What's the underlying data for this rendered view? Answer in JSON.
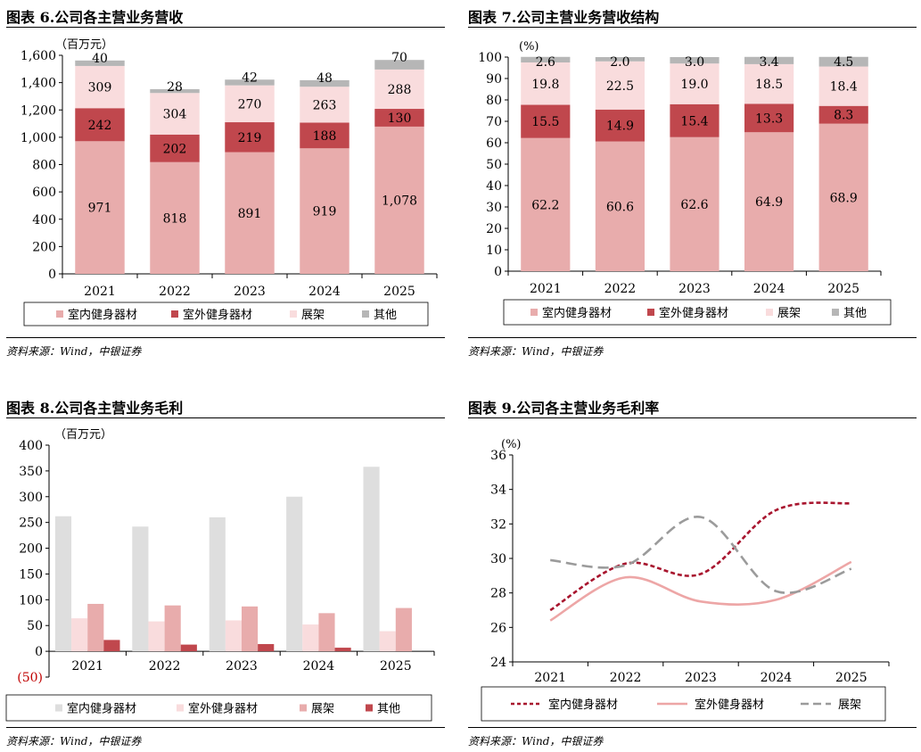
{
  "colors": {
    "indoor": "#E8ACAC",
    "outdoor": "#C0474D",
    "rack": "#F9DCDD",
    "other": "#B6B6B6",
    "gp_indoor": "#DEDEDE",
    "gp_outdoor": "#F9DCDD",
    "gp_rack": "#E8ACAC",
    "gp_other": "#C0474D",
    "line_indoor": "#A8152E",
    "line_outdoor": "#EDA6A6",
    "line_rack": "#9B9B9B"
  },
  "panels": [
    {
      "title": "图表 6.公司各主营业务营收",
      "source": "资料来源：Wind，中银证券",
      "unit": "（百万元）"
    },
    {
      "title": "图表 7.公司主营业务营收结构",
      "source": "资料来源：Wind，中银证券",
      "unit": "(%)"
    },
    {
      "title": "图表 8.公司各主营业务毛利",
      "source": "资料来源：Wind，中银证券",
      "unit": "（百万元）"
    },
    {
      "title": "图表 9.公司各主营业务毛利率",
      "source": "资料来源：Wind，中银证券",
      "unit": "(%)"
    }
  ],
  "chart_data": [
    {
      "type": "bar",
      "stacked": true,
      "title": "",
      "categories": [
        "2021",
        "2022",
        "2023",
        "2024",
        "2025"
      ],
      "ylim": [
        0,
        1600
      ],
      "yticks": [
        "0",
        "200",
        "400",
        "600",
        "800",
        "1,000",
        "1,200",
        "1,400",
        "1,600"
      ],
      "series": [
        {
          "name": "室内健身器材",
          "values": [
            971,
            818,
            891,
            919,
            1078
          ],
          "labels": [
            "971",
            "818",
            "891",
            "919",
            "1,078"
          ]
        },
        {
          "name": "室外健身器材",
          "values": [
            242,
            202,
            219,
            188,
            130
          ],
          "labels": [
            "242",
            "202",
            "219",
            "188",
            "130"
          ]
        },
        {
          "name": "展架",
          "values": [
            309,
            304,
            270,
            263,
            288
          ],
          "labels": [
            "309",
            "304",
            "270",
            "263",
            "288"
          ]
        },
        {
          "name": "其他",
          "values": [
            40,
            28,
            42,
            48,
            70
          ],
          "labels": [
            "40",
            "28",
            "42",
            "48",
            "70"
          ]
        }
      ],
      "legend": "bottom",
      "grid": false
    },
    {
      "type": "bar",
      "stacked": true,
      "title": "",
      "categories": [
        "2021",
        "2022",
        "2023",
        "2024",
        "2025"
      ],
      "ylim": [
        0,
        100
      ],
      "yticks": [
        "0",
        "10",
        "20",
        "30",
        "40",
        "50",
        "60",
        "70",
        "80",
        "90",
        "100"
      ],
      "series": [
        {
          "name": "室内健身器材",
          "values": [
            62.2,
            60.6,
            62.6,
            64.9,
            68.9
          ],
          "labels": [
            "62.2",
            "60.6",
            "62.6",
            "64.9",
            "68.9"
          ]
        },
        {
          "name": "室外健身器材",
          "values": [
            15.5,
            14.9,
            15.4,
            13.3,
            8.3
          ],
          "labels": [
            "15.5",
            "14.9",
            "15.4",
            "13.3",
            "8.3"
          ]
        },
        {
          "name": "展架",
          "values": [
            19.8,
            22.5,
            19.0,
            18.5,
            18.4
          ],
          "labels": [
            "19.8",
            "22.5",
            "19.0",
            "18.5",
            "18.4"
          ]
        },
        {
          "name": "其他",
          "values": [
            2.6,
            2.0,
            3.0,
            3.4,
            4.5
          ],
          "labels": [
            "2.6",
            "2.0",
            "3.0",
            "3.4",
            "4.5"
          ]
        }
      ],
      "legend": "bottom",
      "grid": false
    },
    {
      "type": "bar",
      "stacked": false,
      "title": "",
      "categories": [
        "2021",
        "2022",
        "2023",
        "2024",
        "2025"
      ],
      "ylim": [
        -50,
        400
      ],
      "yticks": [
        "(50)",
        "0",
        "50",
        "100",
        "150",
        "200",
        "250",
        "300",
        "350",
        "400"
      ],
      "series": [
        {
          "name": "室内健身器材",
          "values": [
            262,
            242,
            260,
            300,
            358
          ]
        },
        {
          "name": "室外健身器材",
          "values": [
            64,
            58,
            60,
            52,
            39
          ]
        },
        {
          "name": "展架",
          "values": [
            92,
            89,
            87,
            74,
            84
          ]
        },
        {
          "name": "其他",
          "values": [
            22,
            13,
            14,
            7,
            0
          ]
        }
      ],
      "legend": "bottom",
      "grid": false
    },
    {
      "type": "line",
      "title": "",
      "categories": [
        "2021",
        "2022",
        "2023",
        "2024",
        "2025"
      ],
      "ylim": [
        24,
        36
      ],
      "yticks": [
        "24",
        "26",
        "28",
        "30",
        "32",
        "34",
        "36"
      ],
      "series": [
        {
          "name": "室内健身器材",
          "values": [
            27.0,
            29.7,
            29.1,
            32.8,
            33.2
          ],
          "style": "dashed"
        },
        {
          "name": "室外健身器材",
          "values": [
            26.4,
            28.9,
            27.5,
            27.6,
            29.8
          ],
          "style": "solid"
        },
        {
          "name": "展架",
          "values": [
            29.9,
            29.6,
            32.4,
            28.1,
            29.4
          ],
          "style": "longdash"
        }
      ],
      "legend": "bottom",
      "grid": false
    }
  ]
}
